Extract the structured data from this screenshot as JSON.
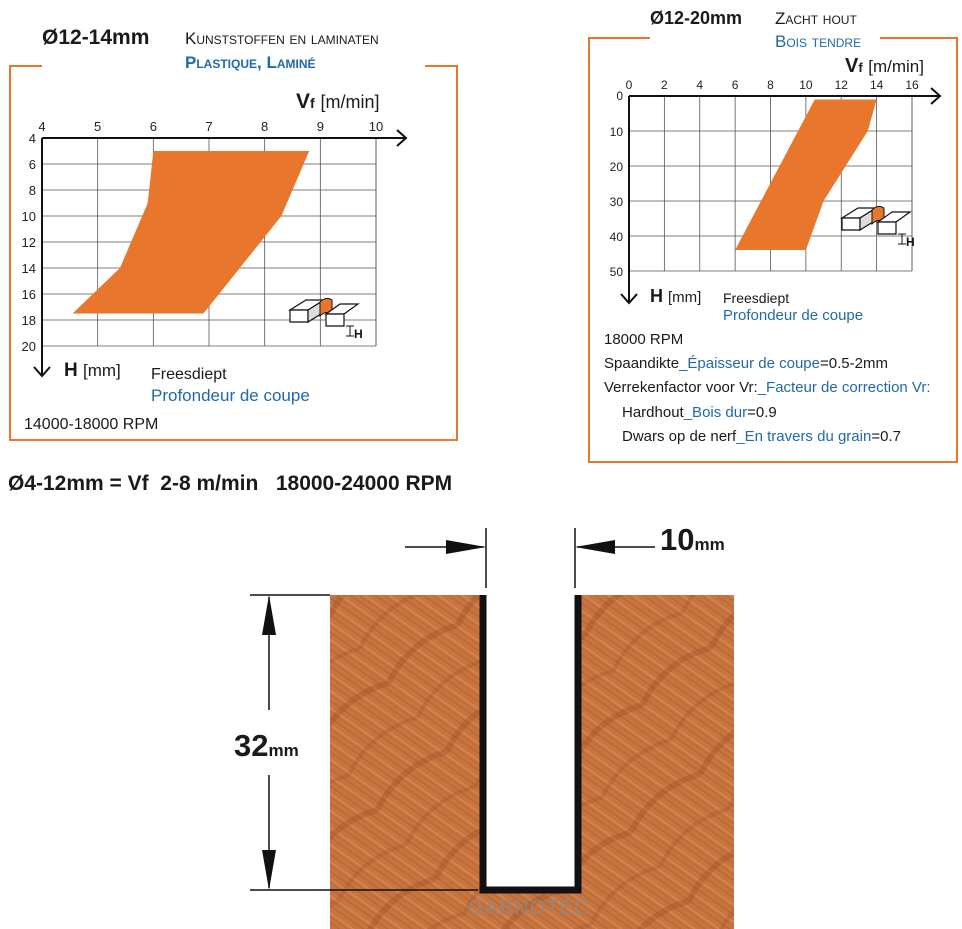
{
  "colors": {
    "frame": "#e8762d",
    "fill": "#e8762d",
    "grid": "#555555",
    "blue": "#1f6aa8",
    "wood": "#c8743f"
  },
  "chart_data": [
    {
      "type": "area",
      "diameter": "Ø12-14mm",
      "material_nl": "Kunststoffen en laminaten",
      "material_fr": "Plastique, Laminé",
      "x_axis": {
        "label_bold": "V",
        "label_sub": "f",
        "unit": "[m/min]",
        "range": [
          4,
          10
        ],
        "ticks": [
          "4",
          "5",
          "6",
          "7",
          "8",
          "9",
          "10"
        ]
      },
      "y_axis": {
        "label_bold": "H",
        "unit": "[mm]",
        "label_nl": "Freesdiept",
        "label_fr": "Profondeur de coupe",
        "range": [
          4,
          20
        ],
        "ticks": [
          "4",
          "6",
          "8",
          "10",
          "12",
          "14",
          "16",
          "18",
          "20"
        ]
      },
      "region": [
        [
          6,
          5
        ],
        [
          8.8,
          5
        ],
        [
          8.3,
          10
        ],
        [
          6.9,
          17.5
        ],
        [
          4.55,
          17.5
        ],
        [
          5.4,
          14
        ],
        [
          5.9,
          9
        ],
        [
          6,
          5
        ]
      ],
      "icon_label": "H",
      "rpm": "14000-18000 RPM"
    },
    {
      "type": "area",
      "diameter": "Ø12-20mm",
      "material_nl": "Zacht hout",
      "material_fr": "Bois tendre",
      "x_axis": {
        "label_bold": "V",
        "label_sub": "f",
        "unit": "[m/min]",
        "range": [
          0,
          16
        ],
        "ticks": [
          "0",
          "2",
          "4",
          "6",
          "8",
          "10",
          "12",
          "14",
          "16"
        ]
      },
      "y_axis": {
        "label_bold": "H",
        "unit": "[mm]",
        "label_nl": "Freesdiept",
        "label_fr": "Profondeur de coupe",
        "range": [
          0,
          50
        ],
        "ticks": [
          "10",
          "20",
          "30",
          "40",
          "50"
        ]
      },
      "region": [
        [
          10.5,
          1
        ],
        [
          14,
          1
        ],
        [
          13.5,
          10
        ],
        [
          11,
          30
        ],
        [
          10,
          44
        ],
        [
          6,
          44
        ],
        [
          10.5,
          1
        ]
      ],
      "icon_label": "H",
      "rpm": "18000 RPM",
      "notes": {
        "chip_nl": "Spaandikte",
        "chip_fr": "_Épaisseur de coupe",
        "chip_val": "=0.5-2mm",
        "corr_nl": "Verrekenfactor voor Vr:",
        "corr_fr": "_Facteur de correction Vr:",
        "hard_nl": "Hardhout",
        "hard_fr": "_Bois dur",
        "hard_val": "=0.9",
        "cross_nl": "Dwars op de nerf",
        "cross_fr": "_En travers du grain",
        "cross_val": "=0.7"
      }
    }
  ],
  "summary": "Ø4-12mm = Vf  2-8 m/min   18000-24000 RPM",
  "dimension": {
    "width_value": "10",
    "width_unit": "mm",
    "depth_value": "32",
    "depth_unit": "mm"
  },
  "watermark": "GARNOTEC"
}
